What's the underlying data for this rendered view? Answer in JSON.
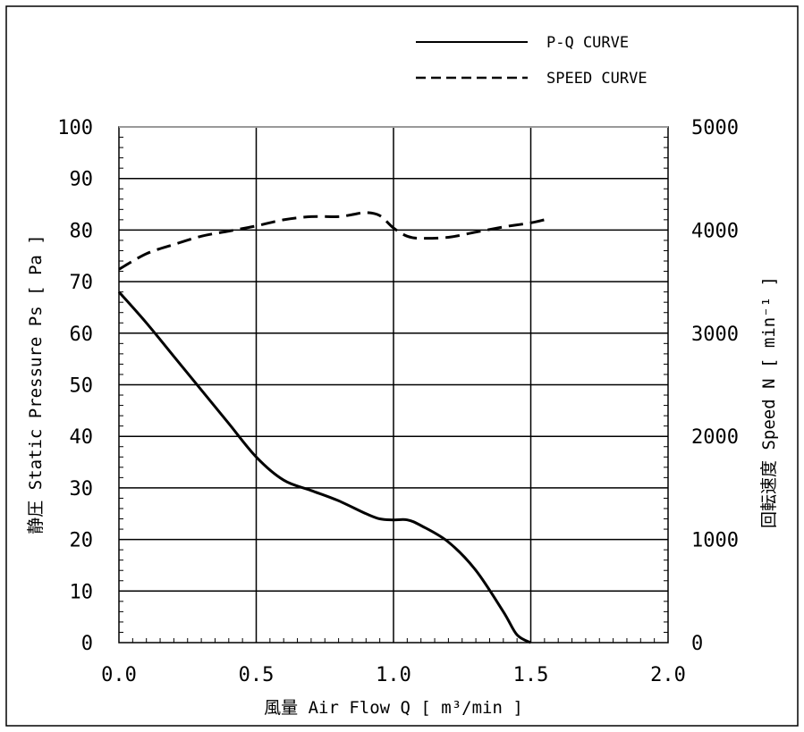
{
  "chart_data": {
    "type": "line",
    "title": "",
    "legend": {
      "placement": "top-right",
      "entries": [
        {
          "label": "P-Q CURVE",
          "style": "solid"
        },
        {
          "label": "SPEED CURVE",
          "style": "dashed"
        }
      ]
    },
    "x_axis": {
      "label": "風量 Air Flow Q [ m³/min ]",
      "range": [
        0,
        2.0
      ],
      "ticks": [
        "0.0",
        "0.5",
        "1.0",
        "1.5",
        "2.0"
      ]
    },
    "y_axis_left": {
      "label": "静圧 Static Pressure Ps [ Pa ]",
      "range": [
        0,
        100
      ],
      "ticks": [
        "0",
        "10",
        "20",
        "30",
        "40",
        "50",
        "60",
        "70",
        "80",
        "90",
        "100"
      ]
    },
    "y_axis_right": {
      "label": "回転速度 Speed N [ min⁻¹ ]",
      "range": [
        0,
        5000
      ],
      "ticks": [
        "0",
        "1000",
        "2000",
        "3000",
        "4000",
        "5000"
      ]
    },
    "grid": true,
    "series": [
      {
        "name": "P-Q CURVE",
        "axis": "left",
        "style": "solid",
        "points": [
          [
            0.0,
            68
          ],
          [
            0.1,
            62
          ],
          [
            0.2,
            55.5
          ],
          [
            0.3,
            49
          ],
          [
            0.4,
            42.5
          ],
          [
            0.5,
            36
          ],
          [
            0.6,
            31.5
          ],
          [
            0.7,
            29.5
          ],
          [
            0.8,
            27.5
          ],
          [
            0.9,
            25
          ],
          [
            0.95,
            24
          ],
          [
            1.0,
            23.8
          ],
          [
            1.05,
            23.8
          ],
          [
            1.1,
            22.7
          ],
          [
            1.2,
            19.5
          ],
          [
            1.3,
            14
          ],
          [
            1.4,
            6
          ],
          [
            1.45,
            1.5
          ],
          [
            1.5,
            0
          ]
        ]
      },
      {
        "name": "SPEED CURVE",
        "axis": "right",
        "style": "dashed",
        "points": [
          [
            0.0,
            3620
          ],
          [
            0.1,
            3770
          ],
          [
            0.2,
            3860
          ],
          [
            0.3,
            3940
          ],
          [
            0.4,
            3990
          ],
          [
            0.5,
            4040
          ],
          [
            0.6,
            4100
          ],
          [
            0.7,
            4130
          ],
          [
            0.8,
            4130
          ],
          [
            0.85,
            4150
          ],
          [
            0.9,
            4170
          ],
          [
            0.95,
            4140
          ],
          [
            1.0,
            4020
          ],
          [
            1.05,
            3940
          ],
          [
            1.1,
            3920
          ],
          [
            1.2,
            3930
          ],
          [
            1.3,
            3980
          ],
          [
            1.4,
            4030
          ],
          [
            1.5,
            4070
          ],
          [
            1.55,
            4100
          ]
        ]
      }
    ]
  }
}
